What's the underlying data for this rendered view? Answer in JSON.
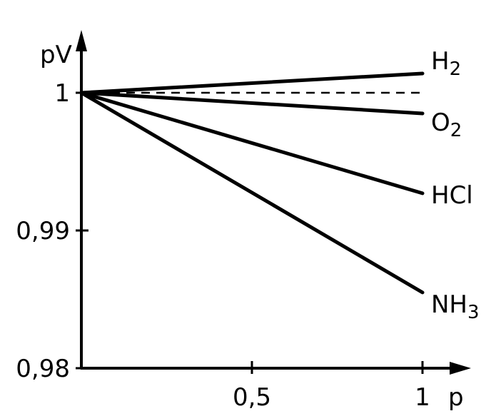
{
  "chart_data": {
    "type": "line",
    "title": "",
    "xlabel": "p",
    "ylabel": "pV",
    "xlim": [
      0,
      1.1
    ],
    "ylim": [
      0.98,
      1.008
    ],
    "x_ticks": [
      {
        "value": 0.5,
        "label": "0,5"
      },
      {
        "value": 1,
        "label": "1"
      }
    ],
    "y_ticks": [
      {
        "value": 1,
        "label": "1"
      },
      {
        "value": 0.99,
        "label": "0,99"
      },
      {
        "value": 0.98,
        "label": "0,98"
      }
    ],
    "grid": false,
    "legend": "none",
    "reference_line": {
      "style": "dashed",
      "y": 1.0,
      "x": [
        0,
        1
      ]
    },
    "series": [
      {
        "name": "H2",
        "label_main": "H",
        "label_sub": "2",
        "x": [
          0,
          1
        ],
        "y": [
          1.0,
          1.0014
        ]
      },
      {
        "name": "O2",
        "label_main": "O",
        "label_sub": "2",
        "x": [
          0,
          1
        ],
        "y": [
          1.0,
          0.9985
        ]
      },
      {
        "name": "HCl",
        "label_main": "HCl",
        "label_sub": "",
        "x": [
          0,
          1
        ],
        "y": [
          1.0,
          0.9927
        ]
      },
      {
        "name": "NH3",
        "label_main": "NH",
        "label_sub": "3",
        "x": [
          0,
          1
        ],
        "y": [
          1.0,
          0.9855
        ]
      }
    ]
  }
}
